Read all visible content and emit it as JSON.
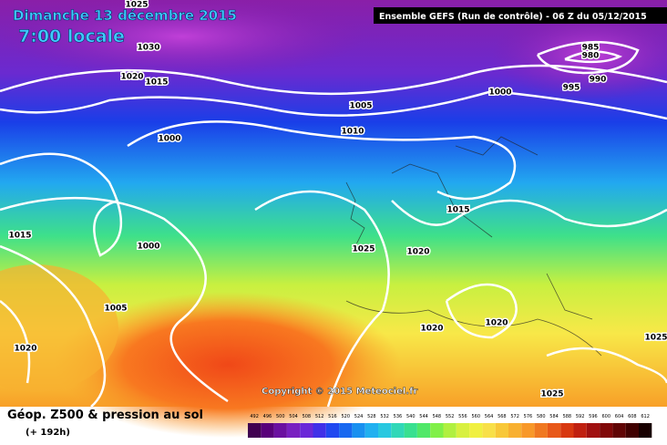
{
  "header": {
    "date": "Dimanche 13 décembre 2015",
    "time": "7:00 locale",
    "run": "Ensemble GEFS  (Run de contrôle)  -  06 Z du 05/12/2015"
  },
  "isobar_labels": [
    1025,
    1030,
    1020,
    1015,
    985,
    980,
    990,
    995,
    1000,
    1005,
    1010,
    1000,
    1015,
    1000,
    1015,
    1025,
    1020,
    1005,
    1020,
    1020,
    1020,
    1025,
    1025
  ],
  "copyright": "Copyright © 2015 Meteociel.fr",
  "footer": {
    "title": "Géop. Z500 & pression au sol",
    "lead": "(+ 192h)"
  },
  "scale_labels": [
    492,
    496,
    500,
    504,
    508,
    512,
    516,
    520,
    524,
    528,
    532,
    536,
    540,
    544,
    548,
    552,
    556,
    560,
    564,
    568,
    572,
    576,
    580,
    584,
    588,
    592,
    596,
    600,
    604,
    608,
    612
  ]
}
